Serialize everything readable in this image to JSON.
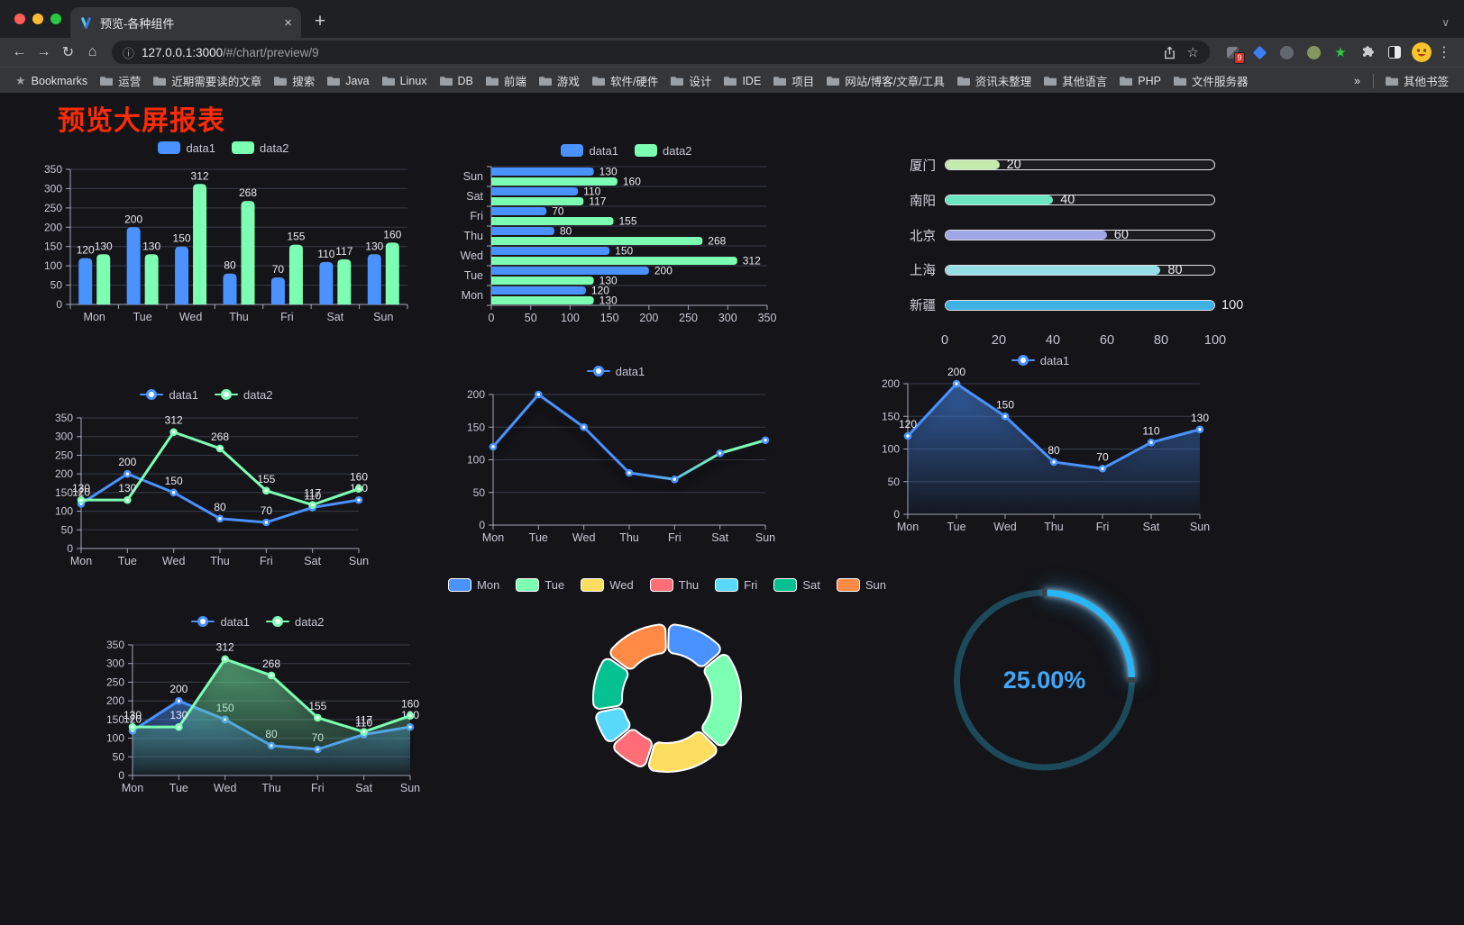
{
  "browser": {
    "tab": {
      "title": "预览-各种组件"
    },
    "url": {
      "host": "127.0.0.1:3000",
      "path": "/#/chart/preview/9"
    },
    "glyphs": {
      "close": "×",
      "plus": "+",
      "chevron": "∨",
      "back": "←",
      "forward": "→",
      "reload": "↻",
      "home": "⌂",
      "info": "ⓘ",
      "star": "☆",
      "menu": "⋮",
      "overflow": "»",
      "bookmark_star": "★"
    },
    "bookmarks": {
      "root_label": "Bookmarks",
      "items": [
        "运营",
        "近期需要读的文章",
        "搜索",
        "Java",
        "Linux",
        "DB",
        "前端",
        "游戏",
        "软件/硬件",
        "设计",
        "IDE",
        "项目",
        "网站/博客/文章/工具",
        "资讯未整理",
        "其他语言",
        "PHP",
        "文件服务器"
      ],
      "other_label": "其他书签"
    },
    "extensions": [
      {
        "kind": "grid",
        "name": "pixel-extension-icon",
        "badge": "9"
      },
      {
        "kind": "kite",
        "name": "kite-extension-icon",
        "color": "#3d7ef2"
      },
      {
        "kind": "circle",
        "name": "gray-round-extension-icon",
        "color": "#62666d"
      },
      {
        "kind": "circle",
        "name": "green-round-extension-icon",
        "color": "#85975c"
      },
      {
        "kind": "star",
        "name": "green-star-extension-icon",
        "color": "#2ecc40",
        "glyph": "★"
      },
      {
        "kind": "puzzle",
        "name": "extensions-puzzle-icon"
      },
      {
        "kind": "panel",
        "name": "reader-panel-extension-icon"
      }
    ],
    "window_colors": {
      "close": "#ff5f57",
      "minimize": "#febc2e",
      "zoom": "#28c840"
    }
  },
  "page": {
    "title": "预览大屏报表",
    "title_color": "#fb2b05"
  },
  "chart_data": [
    {
      "id": "bar-vertical",
      "type": "bar",
      "categories": [
        "Mon",
        "Tue",
        "Wed",
        "Thu",
        "Fri",
        "Sat",
        "Sun"
      ],
      "series": [
        {
          "name": "data1",
          "color": "#4992ff",
          "values": [
            120,
            200,
            150,
            80,
            70,
            110,
            130
          ]
        },
        {
          "name": "data2",
          "color": "#7cffb2",
          "values": [
            130,
            130,
            312,
            268,
            155,
            117,
            160
          ]
        }
      ],
      "ylim": [
        0,
        350
      ],
      "ytick_step": 50,
      "labels": true,
      "legend": "rect",
      "grid": true
    },
    {
      "id": "bar-horizontal",
      "type": "bar-h",
      "categories": [
        "Mon",
        "Tue",
        "Wed",
        "Thu",
        "Fri",
        "Sat",
        "Sun"
      ],
      "series": [
        {
          "name": "data1",
          "color": "#4992ff",
          "values": [
            120,
            200,
            150,
            80,
            70,
            110,
            130
          ]
        },
        {
          "name": "data2",
          "color": "#7cffb2",
          "values": [
            130,
            130,
            312,
            268,
            155,
            117,
            160
          ]
        }
      ],
      "xlim": [
        0,
        350
      ],
      "xtick_step": 50,
      "labels": true,
      "legend": "rect",
      "grid": true
    },
    {
      "id": "progress-bars",
      "type": "progress",
      "max": 100,
      "xticks": [
        0,
        20,
        40,
        60,
        80,
        100
      ],
      "items": [
        {
          "label": "厦门",
          "value": 20,
          "color": "#c4ebad"
        },
        {
          "label": "南阳",
          "value": 40,
          "color": "#6be6c1"
        },
        {
          "label": "北京",
          "value": 60,
          "color": "#a0a7e6"
        },
        {
          "label": "上海",
          "value": 80,
          "color": "#96dee8"
        },
        {
          "label": "新疆",
          "value": 100,
          "color": "#3fb1e3"
        }
      ]
    },
    {
      "id": "line-two-series",
      "type": "line",
      "categories": [
        "Mon",
        "Tue",
        "Wed",
        "Thu",
        "Fri",
        "Sat",
        "Sun"
      ],
      "series": [
        {
          "name": "data1",
          "color": "#4992ff",
          "values": [
            120,
            200,
            150,
            80,
            70,
            110,
            130
          ]
        },
        {
          "name": "data2",
          "color": "#7cffb2",
          "values": [
            130,
            130,
            312,
            268,
            155,
            117,
            160
          ]
        }
      ],
      "ylim": [
        0,
        350
      ],
      "ytick_step": 50,
      "labels": true,
      "legend": "circle"
    },
    {
      "id": "line-gradient",
      "type": "line",
      "categories": [
        "Mon",
        "Tue",
        "Wed",
        "Thu",
        "Fri",
        "Sat",
        "Sun"
      ],
      "series": [
        {
          "name": "data1",
          "color": "#4992ff",
          "color_end": "#7cffb2",
          "gradient": true,
          "values": [
            120,
            200,
            150,
            80,
            70,
            110,
            130
          ]
        }
      ],
      "ylim": [
        0,
        200
      ],
      "ytick_step": 50,
      "labels": false,
      "legend": "circle",
      "shadow": true
    },
    {
      "id": "line-area",
      "type": "line",
      "categories": [
        "Mon",
        "Tue",
        "Wed",
        "Thu",
        "Fri",
        "Sat",
        "Sun"
      ],
      "series": [
        {
          "name": "data1",
          "color": "#4992ff",
          "area": true,
          "values": [
            120,
            200,
            150,
            80,
            70,
            110,
            130
          ]
        }
      ],
      "ylim": [
        0,
        200
      ],
      "ytick_step": 50,
      "labels": true,
      "legend": "circle",
      "shadow": true
    },
    {
      "id": "area-two-series",
      "type": "line",
      "categories": [
        "Mon",
        "Tue",
        "Wed",
        "Thu",
        "Fri",
        "Sat",
        "Sun"
      ],
      "series": [
        {
          "name": "data1",
          "color": "#4992ff",
          "area": true,
          "values": [
            120,
            200,
            150,
            80,
            70,
            110,
            130
          ]
        },
        {
          "name": "data2",
          "color": "#7cffb2",
          "area": true,
          "values": [
            130,
            130,
            312,
            268,
            155,
            117,
            160
          ]
        }
      ],
      "ylim": [
        0,
        350
      ],
      "ytick_step": 50,
      "labels": true,
      "legend": "circle",
      "shadow": true
    },
    {
      "id": "donut",
      "type": "pie",
      "legend": "rect-border",
      "items": [
        {
          "label": "Mon",
          "value": 120,
          "color": "#4992ff"
        },
        {
          "label": "Tue",
          "value": 200,
          "color": "#7cffb2"
        },
        {
          "label": "Wed",
          "value": 150,
          "color": "#fddd60"
        },
        {
          "label": "Thu",
          "value": 80,
          "color": "#ff6e76"
        },
        {
          "label": "Fri",
          "value": 70,
          "color": "#58d9f9"
        },
        {
          "label": "Sat",
          "value": 110,
          "color": "#05c091"
        },
        {
          "label": "Sun",
          "value": 130,
          "color": "#ff8a45"
        }
      ]
    },
    {
      "id": "gauge",
      "type": "gauge",
      "value": 25,
      "max": 100,
      "display": "25.00%",
      "arc_color": "#29b6f6",
      "track_color": "#1d4a5a",
      "text_color": "#42a5f5"
    }
  ]
}
